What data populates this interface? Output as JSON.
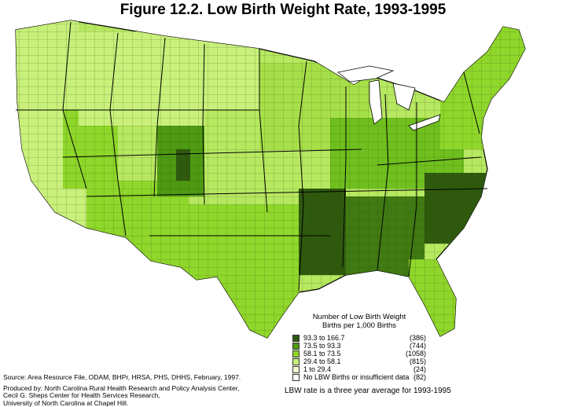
{
  "title": "Figure 12.2.  Low Birth Weight Rate, 1993-1995",
  "legend": {
    "title_line1": "Number of Low Birth Weight",
    "title_line2": "Births per 1,000 Births",
    "items": [
      {
        "range": "93.3 to 166.7",
        "count": "(386)",
        "color": "#2f5a0e"
      },
      {
        "range": "73.5 to  93.3",
        "count": "(744)",
        "color": "#4e9a12"
      },
      {
        "range": "58.1 to  73.5",
        "count": "(1058)",
        "color": "#8fd72a"
      },
      {
        "range": "29.4 to  58.1",
        "count": "(815)",
        "color": "#c8f07a"
      },
      {
        "range": "1    to  29.4",
        "count": "(24)",
        "color": "#f0fcd0"
      },
      {
        "range": "No LBW Births or insufficient data",
        "count": "(82)",
        "color": "#ffffff"
      }
    ]
  },
  "note": "LBW rate is a three year average for 1993-1995",
  "source": {
    "line1": "Source: Area Resource File, ODAM, BHPr, HRSA, PHS, DHHS, February, 1997.",
    "line2": "Produced by: North Carolina Rural Health Research and Policy Analysis Center,",
    "line3": "Cecil G. Sheps Center for Health Services Research,",
    "line4": "University of North Carolina at Chapel Hill."
  }
}
